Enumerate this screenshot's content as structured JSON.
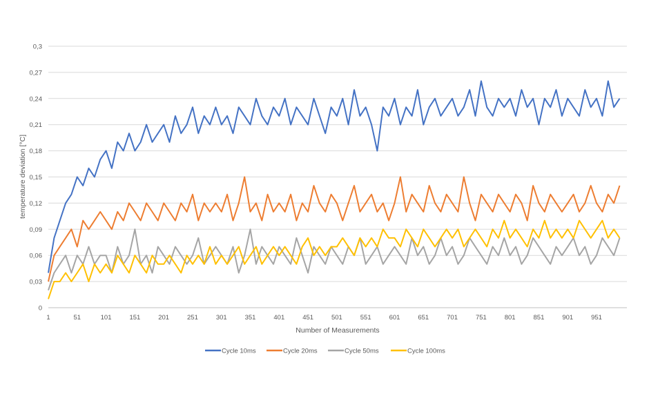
{
  "chart_data": {
    "type": "line",
    "title": "",
    "xlabel": "Number of Measurements",
    "ylabel": "temperature deviation [°C]",
    "ylim": [
      0,
      0.3
    ],
    "xlim": [
      1,
      1000
    ],
    "grid": true,
    "legend_position": "bottom",
    "y_ticks": [
      "0",
      "0,03",
      "0,06",
      "0,09",
      "0,12",
      "0,15",
      "0,18",
      "0,21",
      "0,24",
      "0,27",
      "0,3"
    ],
    "x_ticks": [
      "1",
      "51",
      "101",
      "151",
      "201",
      "251",
      "301",
      "351",
      "401",
      "451",
      "501",
      "551",
      "601",
      "651",
      "701",
      "751",
      "801",
      "851",
      "901",
      "951"
    ],
    "x": [
      1,
      11,
      21,
      31,
      41,
      51,
      61,
      71,
      81,
      91,
      101,
      111,
      121,
      131,
      141,
      151,
      161,
      171,
      181,
      191,
      201,
      211,
      221,
      231,
      241,
      251,
      261,
      271,
      281,
      291,
      301,
      311,
      321,
      331,
      341,
      351,
      361,
      371,
      381,
      391,
      401,
      411,
      421,
      431,
      441,
      451,
      461,
      471,
      481,
      491,
      501,
      511,
      521,
      531,
      541,
      551,
      561,
      571,
      581,
      591,
      601,
      611,
      621,
      631,
      641,
      651,
      661,
      671,
      681,
      691,
      701,
      711,
      721,
      731,
      741,
      751,
      761,
      771,
      781,
      791,
      801,
      811,
      821,
      831,
      841,
      851,
      861,
      871,
      881,
      891,
      901,
      911,
      921,
      931,
      941,
      951,
      961,
      971,
      981,
      991
    ],
    "series": [
      {
        "name": "Cycle 10ms",
        "color": "#4472C4",
        "values": [
          0.04,
          0.08,
          0.1,
          0.12,
          0.13,
          0.15,
          0.14,
          0.16,
          0.15,
          0.17,
          0.18,
          0.16,
          0.19,
          0.18,
          0.2,
          0.18,
          0.19,
          0.21,
          0.19,
          0.2,
          0.21,
          0.19,
          0.22,
          0.2,
          0.21,
          0.23,
          0.2,
          0.22,
          0.21,
          0.23,
          0.21,
          0.22,
          0.2,
          0.23,
          0.22,
          0.21,
          0.24,
          0.22,
          0.21,
          0.23,
          0.22,
          0.24,
          0.21,
          0.23,
          0.22,
          0.21,
          0.24,
          0.22,
          0.2,
          0.23,
          0.22,
          0.24,
          0.21,
          0.25,
          0.22,
          0.23,
          0.21,
          0.18,
          0.23,
          0.22,
          0.24,
          0.21,
          0.23,
          0.22,
          0.25,
          0.21,
          0.23,
          0.24,
          0.22,
          0.23,
          0.24,
          0.22,
          0.23,
          0.25,
          0.22,
          0.26,
          0.23,
          0.22,
          0.24,
          0.23,
          0.24,
          0.22,
          0.25,
          0.23,
          0.24,
          0.21,
          0.24,
          0.23,
          0.25,
          0.22,
          0.24,
          0.23,
          0.22,
          0.25,
          0.23,
          0.24,
          0.22,
          0.26,
          0.23,
          0.24
        ]
      },
      {
        "name": "Cycle 20ms",
        "color": "#ED7D31",
        "values": [
          0.03,
          0.06,
          0.07,
          0.08,
          0.09,
          0.07,
          0.1,
          0.09,
          0.1,
          0.11,
          0.1,
          0.09,
          0.11,
          0.1,
          0.12,
          0.11,
          0.1,
          0.12,
          0.11,
          0.1,
          0.12,
          0.11,
          0.1,
          0.12,
          0.11,
          0.13,
          0.1,
          0.12,
          0.11,
          0.12,
          0.11,
          0.13,
          0.1,
          0.12,
          0.15,
          0.11,
          0.12,
          0.1,
          0.13,
          0.11,
          0.12,
          0.11,
          0.13,
          0.1,
          0.12,
          0.11,
          0.14,
          0.12,
          0.11,
          0.13,
          0.12,
          0.1,
          0.12,
          0.14,
          0.11,
          0.12,
          0.13,
          0.11,
          0.12,
          0.1,
          0.12,
          0.15,
          0.11,
          0.13,
          0.12,
          0.11,
          0.14,
          0.12,
          0.11,
          0.13,
          0.12,
          0.11,
          0.15,
          0.12,
          0.1,
          0.13,
          0.12,
          0.11,
          0.13,
          0.12,
          0.11,
          0.13,
          0.12,
          0.1,
          0.14,
          0.12,
          0.11,
          0.13,
          0.12,
          0.11,
          0.12,
          0.13,
          0.11,
          0.12,
          0.14,
          0.12,
          0.11,
          0.13,
          0.12,
          0.14
        ]
      },
      {
        "name": "Cycle 50ms",
        "color": "#A5A5A5",
        "values": [
          0.02,
          0.04,
          0.05,
          0.06,
          0.04,
          0.06,
          0.05,
          0.07,
          0.05,
          0.06,
          0.06,
          0.04,
          0.07,
          0.05,
          0.06,
          0.09,
          0.05,
          0.06,
          0.04,
          0.07,
          0.06,
          0.05,
          0.07,
          0.06,
          0.05,
          0.06,
          0.08,
          0.05,
          0.06,
          0.07,
          0.06,
          0.05,
          0.07,
          0.04,
          0.06,
          0.09,
          0.05,
          0.07,
          0.06,
          0.05,
          0.07,
          0.06,
          0.05,
          0.08,
          0.06,
          0.04,
          0.07,
          0.06,
          0.05,
          0.07,
          0.06,
          0.05,
          0.07,
          0.06,
          0.08,
          0.05,
          0.06,
          0.07,
          0.05,
          0.06,
          0.07,
          0.06,
          0.05,
          0.08,
          0.06,
          0.07,
          0.05,
          0.06,
          0.08,
          0.06,
          0.07,
          0.05,
          0.06,
          0.08,
          0.07,
          0.06,
          0.05,
          0.07,
          0.06,
          0.08,
          0.06,
          0.07,
          0.05,
          0.06,
          0.08,
          0.07,
          0.06,
          0.05,
          0.07,
          0.06,
          0.07,
          0.08,
          0.06,
          0.07,
          0.05,
          0.06,
          0.08,
          0.07,
          0.06,
          0.08
        ]
      },
      {
        "name": "Cycle 100ms",
        "color": "#FFC000",
        "values": [
          0.01,
          0.03,
          0.03,
          0.04,
          0.03,
          0.04,
          0.05,
          0.03,
          0.05,
          0.04,
          0.05,
          0.04,
          0.06,
          0.05,
          0.04,
          0.06,
          0.05,
          0.04,
          0.06,
          0.05,
          0.05,
          0.06,
          0.05,
          0.04,
          0.06,
          0.05,
          0.06,
          0.05,
          0.07,
          0.05,
          0.06,
          0.05,
          0.06,
          0.07,
          0.05,
          0.06,
          0.07,
          0.05,
          0.06,
          0.07,
          0.06,
          0.07,
          0.06,
          0.05,
          0.07,
          0.08,
          0.06,
          0.07,
          0.06,
          0.07,
          0.07,
          0.08,
          0.07,
          0.06,
          0.08,
          0.07,
          0.08,
          0.07,
          0.09,
          0.08,
          0.08,
          0.07,
          0.09,
          0.08,
          0.07,
          0.09,
          0.08,
          0.07,
          0.08,
          0.09,
          0.08,
          0.09,
          0.07,
          0.08,
          0.09,
          0.08,
          0.07,
          0.09,
          0.08,
          0.1,
          0.08,
          0.09,
          0.08,
          0.07,
          0.09,
          0.08,
          0.1,
          0.08,
          0.09,
          0.08,
          0.09,
          0.08,
          0.1,
          0.09,
          0.08,
          0.09,
          0.1,
          0.08,
          0.09,
          0.08
        ]
      }
    ]
  }
}
